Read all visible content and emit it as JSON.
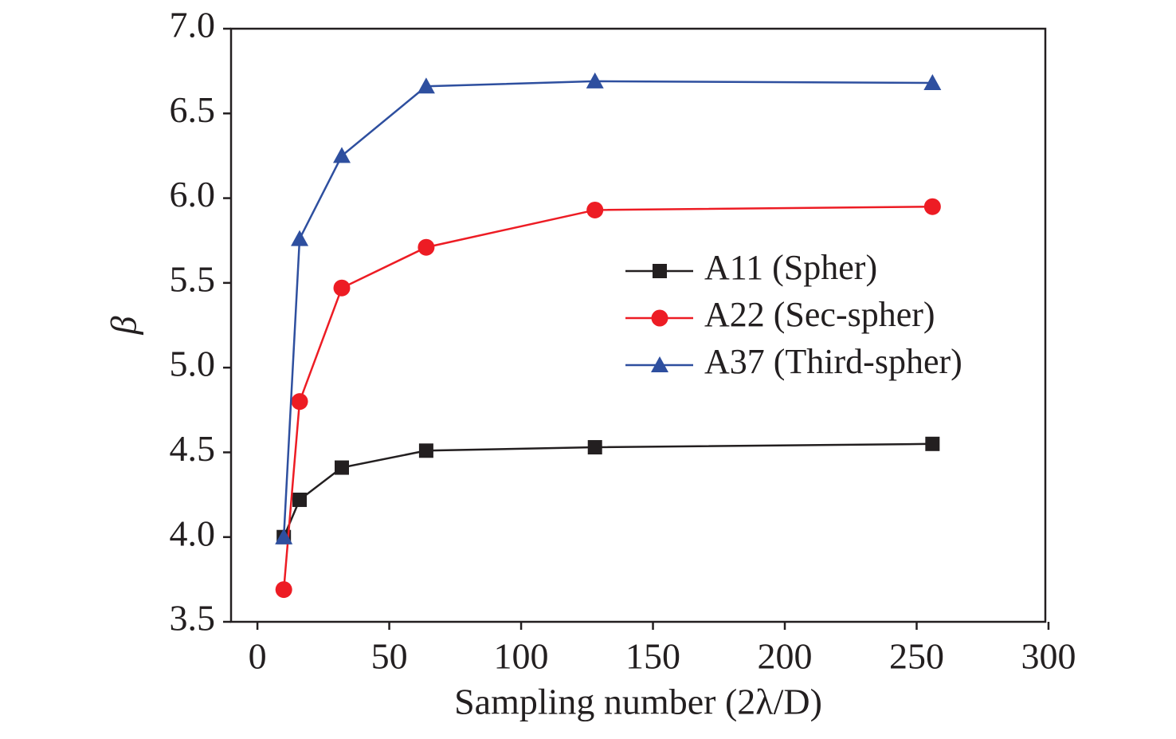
{
  "chart_data": {
    "type": "line",
    "x_label": "Sampling number (2λ/D)",
    "y_label": "β",
    "x": [
      10,
      16,
      32,
      64,
      128,
      256
    ],
    "series": [
      {
        "name": "A11 (Spher)",
        "color": "#231f20",
        "marker": "square",
        "values": [
          4.0,
          4.22,
          4.41,
          4.51,
          4.53,
          4.55
        ]
      },
      {
        "name": "A22 (Sec-spher)",
        "color": "#ed1c24",
        "marker": "circle",
        "values": [
          3.69,
          4.8,
          5.47,
          5.71,
          5.93,
          5.95
        ]
      },
      {
        "name": "A37 (Third-spher)",
        "color": "#2e4f9f",
        "marker": "triangle",
        "values": [
          4.0,
          5.76,
          6.25,
          6.66,
          6.69,
          6.68
        ]
      }
    ],
    "xlim": [
      -10,
      298.8
    ],
    "ylim": [
      3.5,
      7.0
    ],
    "xticks": [
      0,
      50,
      100,
      150,
      200,
      250,
      300
    ],
    "yticks": [
      {
        "value": 3.5,
        "label": "3.5"
      },
      {
        "value": 4.0,
        "label": "4.0"
      },
      {
        "value": 4.5,
        "label": "4.5"
      },
      {
        "value": 5.0,
        "label": "5.0"
      },
      {
        "value": 5.5,
        "label": "5.5"
      },
      {
        "value": 6.0,
        "label": "6.0"
      },
      {
        "value": 6.5,
        "label": "6.5"
      },
      {
        "value": 7.0,
        "label": "7.0"
      }
    ],
    "legend": "right"
  }
}
